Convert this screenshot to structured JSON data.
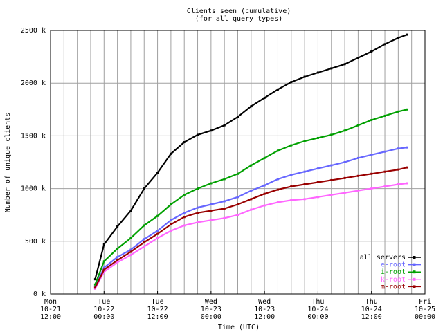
{
  "chart_data": {
    "type": "line",
    "title": "Clients seen (cumulative)",
    "subtitle": "(for all query types)",
    "xlabel": "Time (UTC)",
    "ylabel": "Number of unique clients",
    "xlim": [
      "2008-10-21 12:00",
      "2008-10-25 00:00"
    ],
    "ylim": [
      0,
      2500000
    ],
    "grid": true,
    "legend_position": "bottom-right",
    "y_ticks": [
      {
        "value": 0,
        "label": "0 k"
      },
      {
        "value": 500000,
        "label": "500 k"
      },
      {
        "value": 1000000,
        "label": "1000 k"
      },
      {
        "value": 1500000,
        "label": "1500 k"
      },
      {
        "value": 2000000,
        "label": "2000 k"
      },
      {
        "value": 2500000,
        "label": "2500 k"
      }
    ],
    "x_ticks": [
      {
        "value": "2008-10-21 12:00",
        "lines": [
          "Mon",
          "10-21",
          "12:00"
        ]
      },
      {
        "value": "2008-10-22 00:00",
        "lines": [
          "Tue",
          "10-22",
          "00:00"
        ]
      },
      {
        "value": "2008-10-22 12:00",
        "lines": [
          "Tue",
          "10-22",
          "12:00"
        ]
      },
      {
        "value": "2008-10-23 00:00",
        "lines": [
          "Wed",
          "10-23",
          "00:00"
        ]
      },
      {
        "value": "2008-10-23 12:00",
        "lines": [
          "Wed",
          "10-23",
          "12:00"
        ]
      },
      {
        "value": "2008-10-24 00:00",
        "lines": [
          "Thu",
          "10-24",
          "00:00"
        ]
      },
      {
        "value": "2008-10-24 12:00",
        "lines": [
          "Thu",
          "10-24",
          "12:00"
        ]
      },
      {
        "value": "2008-10-25 00:00",
        "lines": [
          "Fri",
          "10-25",
          "00:00"
        ]
      }
    ],
    "x": [
      "2008-10-21 22:00",
      "2008-10-22 00:00",
      "2008-10-22 03:00",
      "2008-10-22 06:00",
      "2008-10-22 09:00",
      "2008-10-22 12:00",
      "2008-10-22 15:00",
      "2008-10-22 18:00",
      "2008-10-22 21:00",
      "2008-10-23 00:00",
      "2008-10-23 03:00",
      "2008-10-23 06:00",
      "2008-10-23 09:00",
      "2008-10-23 12:00",
      "2008-10-23 15:00",
      "2008-10-23 18:00",
      "2008-10-23 21:00",
      "2008-10-24 00:00",
      "2008-10-24 03:00",
      "2008-10-24 06:00",
      "2008-10-24 09:00",
      "2008-10-24 12:00",
      "2008-10-24 15:00",
      "2008-10-24 18:00",
      "2008-10-24 20:00"
    ],
    "series": [
      {
        "name": "all servers",
        "color": "#000000",
        "values": [
          140000,
          470000,
          640000,
          790000,
          1000000,
          1150000,
          1330000,
          1440000,
          1510000,
          1550000,
          1600000,
          1680000,
          1780000,
          1860000,
          1940000,
          2010000,
          2060000,
          2100000,
          2140000,
          2180000,
          2240000,
          2300000,
          2370000,
          2430000,
          2460000
        ]
      },
      {
        "name": "e-root",
        "color": "#6666ff",
        "values": [
          70000,
          250000,
          350000,
          420000,
          520000,
          600000,
          700000,
          770000,
          820000,
          850000,
          880000,
          920000,
          980000,
          1030000,
          1090000,
          1130000,
          1160000,
          1190000,
          1220000,
          1250000,
          1290000,
          1320000,
          1350000,
          1380000,
          1390000
        ]
      },
      {
        "name": "i-root",
        "color": "#00a000",
        "values": [
          90000,
          310000,
          430000,
          530000,
          650000,
          740000,
          850000,
          940000,
          1000000,
          1050000,
          1090000,
          1140000,
          1220000,
          1290000,
          1360000,
          1410000,
          1450000,
          1480000,
          1510000,
          1550000,
          1600000,
          1650000,
          1690000,
          1730000,
          1750000
        ]
      },
      {
        "name": "k-root",
        "color": "#ff66ff",
        "values": [
          50000,
          210000,
          300000,
          370000,
          450000,
          530000,
          600000,
          650000,
          680000,
          700000,
          720000,
          750000,
          800000,
          840000,
          870000,
          890000,
          900000,
          920000,
          940000,
          960000,
          980000,
          1000000,
          1020000,
          1040000,
          1050000
        ]
      },
      {
        "name": "m-root",
        "color": "#990000",
        "values": [
          60000,
          230000,
          320000,
          400000,
          490000,
          570000,
          660000,
          730000,
          770000,
          790000,
          810000,
          850000,
          900000,
          950000,
          990000,
          1020000,
          1040000,
          1060000,
          1080000,
          1100000,
          1120000,
          1140000,
          1160000,
          1180000,
          1200000
        ]
      }
    ]
  }
}
